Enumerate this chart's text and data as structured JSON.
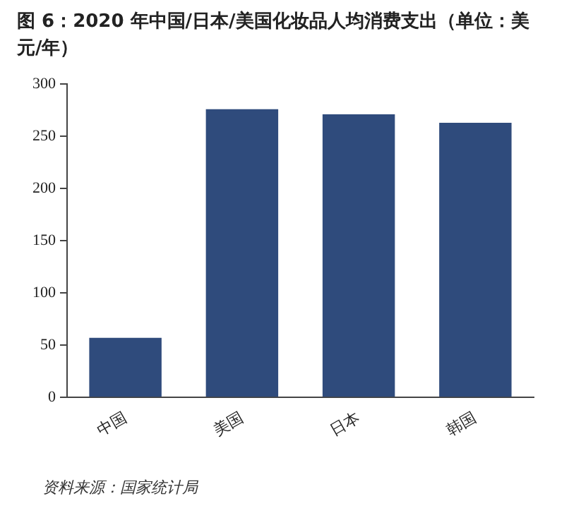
{
  "chart_data": {
    "type": "bar",
    "title": "图 6：2020 年中国/日本/美国化妆品人均消费支出（单位：美元/年）",
    "categories": [
      "中国",
      "美国",
      "日本",
      "韩国"
    ],
    "values": [
      57,
      276,
      271,
      263
    ],
    "color": "#2f4b7c",
    "ylim": [
      0,
      300
    ],
    "yticks": [
      0,
      50,
      100,
      150,
      200,
      250,
      300
    ],
    "grid": false,
    "legend": false,
    "annotations": [
      "资料来源：国家统计局"
    ]
  }
}
